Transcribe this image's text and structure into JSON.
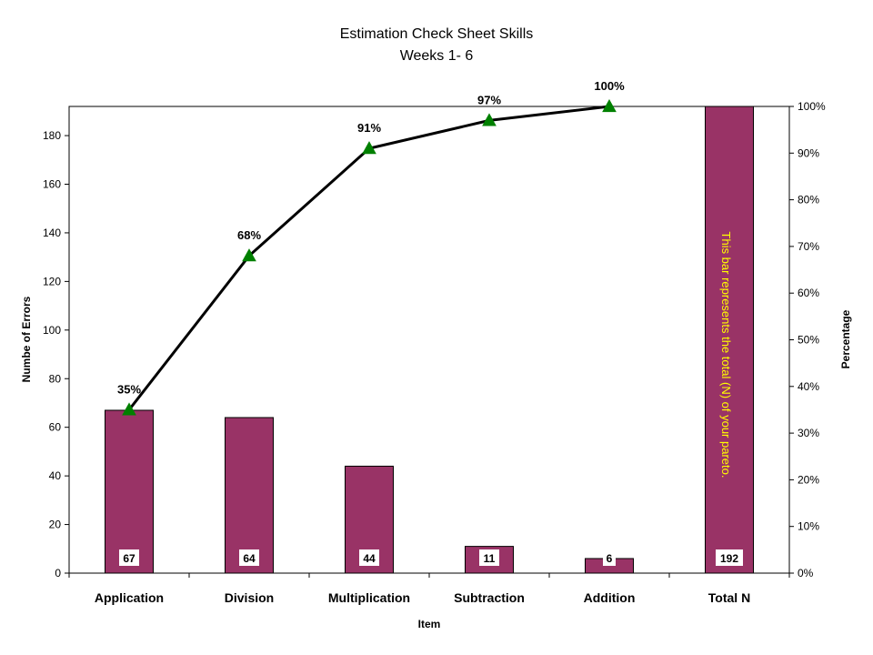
{
  "chart_data": {
    "type": "bar",
    "title": "Estimation Check Sheet Skills",
    "subtitle": "Weeks 1- 6",
    "categories": [
      "Application",
      "Division",
      "Multiplication",
      "Subtraction",
      "Addition",
      "Total N"
    ],
    "series": [
      {
        "values": [
          67,
          64,
          44,
          11,
          6,
          192
        ]
      }
    ],
    "cumulative_line": {
      "categories": [
        "Application",
        "Division",
        "Multiplication",
        "Subtraction",
        "Addition"
      ],
      "values": [
        35,
        68,
        91,
        97,
        100
      ],
      "labels": [
        "35%",
        "68%",
        "91%",
        "97%",
        "100%"
      ]
    },
    "value_labels": [
      "67",
      "64",
      "44",
      "11",
      "6",
      "192"
    ],
    "xlabel": "Item",
    "ylabel": "Numbe of Errors",
    "y2label": "Percentage",
    "ylim": [
      0,
      192
    ],
    "y_ticks": [
      "0",
      "20",
      "40",
      "60",
      "80",
      "100",
      "120",
      "140",
      "160",
      "180"
    ],
    "y2lim": [
      0,
      100
    ],
    "y2_ticks": [
      "0%",
      "10%",
      "20%",
      "30%",
      "40%",
      "50%",
      "60%",
      "70%",
      "80%",
      "90%",
      "100%"
    ],
    "annotation": "This bar represents the total (N) of your pareto.",
    "grid": false,
    "legend": "none",
    "colors": {
      "bar": "#993366",
      "line": "#000000",
      "marker": "#008000",
      "annotation": "#ffff00"
    }
  }
}
